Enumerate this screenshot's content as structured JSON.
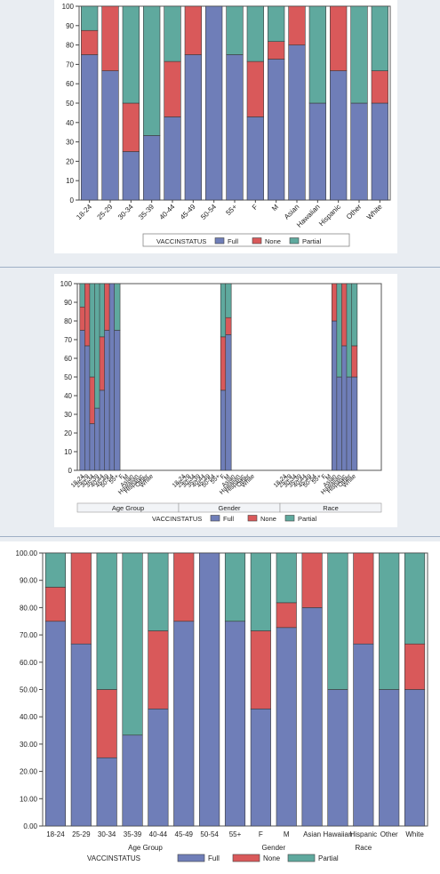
{
  "colors": {
    "Full": "#6f7eb8",
    "None": "#d9595a",
    "Partial": "#5fa99e"
  },
  "chart_data": [
    {
      "type": "bar",
      "stacked": true,
      "categories": [
        "18-24",
        "25-29",
        "30-34",
        "35-39",
        "40-44",
        "45-49",
        "50-54",
        "55+",
        "F",
        "M",
        "Asian",
        "Hawaiian",
        "Hispanic",
        "Other",
        "White"
      ],
      "series": [
        {
          "name": "Full",
          "values": [
            75,
            66.7,
            25,
            33.3,
            42.9,
            75,
            100,
            75,
            42.9,
            72.7,
            80,
            50,
            66.7,
            50,
            50
          ]
        },
        {
          "name": "None",
          "values": [
            12.5,
            33.3,
            25,
            0,
            28.6,
            25,
            0,
            0,
            28.6,
            9.1,
            20,
            0,
            33.3,
            0,
            16.7
          ]
        },
        {
          "name": "Partial",
          "values": [
            12.5,
            0,
            50,
            66.7,
            28.5,
            0,
            0,
            25,
            28.5,
            18.2,
            0,
            50,
            0,
            50,
            33.3
          ]
        }
      ],
      "ylim": [
        0,
        100
      ],
      "yticks": [
        "0",
        "10",
        "20",
        "30",
        "40",
        "50",
        "60",
        "70",
        "80",
        "90",
        "100"
      ],
      "legend_title": "VACCINSTATUS",
      "legend_items": [
        "Full",
        "None",
        "Partial"
      ]
    },
    {
      "type": "bar",
      "stacked": true,
      "panel_labels": [
        "Age Group",
        "Gender",
        "Race"
      ],
      "panel_tick_labels": [
        [
          "18-24",
          "25-29",
          "30-34",
          "35-39",
          "40-44",
          "45-49",
          "50-54",
          "55+",
          "F",
          "M",
          "Asian",
          "Hawaiian",
          "Hispanic",
          "Other",
          "White"
        ],
        [
          "18-24",
          "25-29",
          "30-34",
          "35-39",
          "40-44",
          "45-49",
          "50-54",
          "55+",
          "F",
          "M",
          "Asian",
          "Hawaiian",
          "Hispanic",
          "Other",
          "White"
        ],
        [
          "18-24",
          "25-29",
          "30-34",
          "35-39",
          "40-44",
          "45-49",
          "50-54",
          "55+",
          "F",
          "M",
          "Asian",
          "Hawaiian",
          "Hispanic",
          "Other",
          "White"
        ]
      ],
      "bars": [
        {
          "panel": 0,
          "slot": 0,
          "values": [
            75,
            12.5,
            12.5
          ]
        },
        {
          "panel": 0,
          "slot": 1,
          "values": [
            66.7,
            33.3,
            0
          ]
        },
        {
          "panel": 0,
          "slot": 2,
          "values": [
            25,
            25,
            50
          ]
        },
        {
          "panel": 0,
          "slot": 3,
          "values": [
            33.3,
            0,
            66.7
          ]
        },
        {
          "panel": 0,
          "slot": 4,
          "values": [
            42.9,
            28.6,
            28.5
          ]
        },
        {
          "panel": 0,
          "slot": 5,
          "values": [
            75,
            25,
            0
          ]
        },
        {
          "panel": 0,
          "slot": 6,
          "values": [
            100,
            0,
            0
          ]
        },
        {
          "panel": 0,
          "slot": 7,
          "values": [
            75,
            0,
            25
          ]
        },
        {
          "panel": 1,
          "slot": 8,
          "values": [
            42.9,
            28.6,
            28.5
          ]
        },
        {
          "panel": 1,
          "slot": 9,
          "values": [
            72.7,
            9.1,
            18.2
          ]
        },
        {
          "panel": 2,
          "slot": 10,
          "values": [
            80,
            20,
            0
          ]
        },
        {
          "panel": 2,
          "slot": 11,
          "values": [
            50,
            0,
            50
          ]
        },
        {
          "panel": 2,
          "slot": 12,
          "values": [
            66.7,
            33.3,
            0
          ]
        },
        {
          "panel": 2,
          "slot": 13,
          "values": [
            50,
            0,
            50
          ]
        },
        {
          "panel": 2,
          "slot": 14,
          "values": [
            50,
            16.7,
            33.3
          ]
        }
      ],
      "series_names": [
        "Full",
        "None",
        "Partial"
      ],
      "ylim": [
        0,
        100
      ],
      "yticks": [
        "0",
        "10",
        "20",
        "30",
        "40",
        "50",
        "60",
        "70",
        "80",
        "90",
        "100"
      ],
      "legend_title": "VACCINSTATUS",
      "legend_items": [
        "Full",
        "None",
        "Partial"
      ]
    },
    {
      "type": "bar",
      "stacked": true,
      "categories": [
        "18-24",
        "25-29",
        "30-34",
        "35-39",
        "40-44",
        "45-49",
        "50-54",
        "55+",
        "F",
        "M",
        "Asian",
        "Hawaiian",
        "Hispanic",
        "Other",
        "White"
      ],
      "series": [
        {
          "name": "Full",
          "values": [
            75,
            66.7,
            25,
            33.3,
            42.9,
            75,
            100,
            75,
            42.9,
            72.7,
            80,
            50,
            66.7,
            50,
            50
          ]
        },
        {
          "name": "None",
          "values": [
            12.5,
            33.3,
            25,
            0,
            28.6,
            25,
            0,
            0,
            28.6,
            9.1,
            20,
            0,
            33.3,
            0,
            16.7
          ]
        },
        {
          "name": "Partial",
          "values": [
            12.5,
            0,
            50,
            66.7,
            28.5,
            0,
            0,
            25,
            28.5,
            18.2,
            0,
            50,
            0,
            50,
            33.3
          ]
        }
      ],
      "ylim": [
        0,
        100
      ],
      "yticks": [
        "0.00",
        "10.00",
        "20.00",
        "30.00",
        "40.00",
        "50.00",
        "60.00",
        "70.00",
        "80.00",
        "90.00",
        "100.00"
      ],
      "group_labels": [
        "Age Group",
        "Gender",
        "Race"
      ],
      "legend_title": "VACCINSTATUS",
      "legend_items": [
        "Full",
        "None",
        "Partial"
      ]
    }
  ]
}
